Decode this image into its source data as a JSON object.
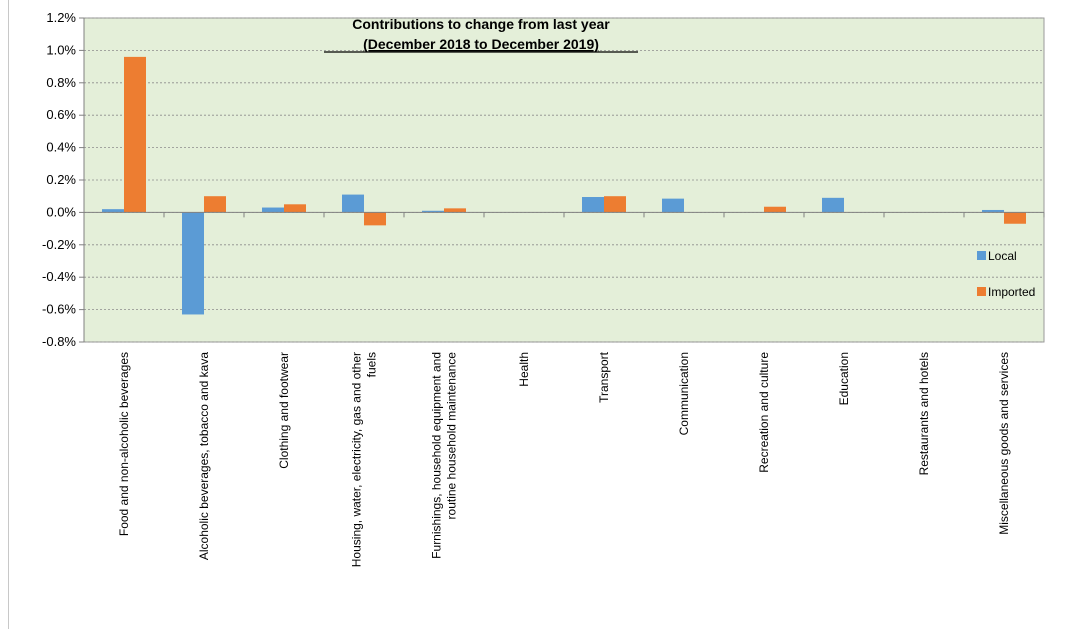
{
  "chart_data": {
    "type": "bar",
    "title": "Contributions to change from last year",
    "subtitle": "(December 2018 to December 2019)",
    "xlabel": "",
    "ylabel": "",
    "ylim": [
      -0.8,
      1.2
    ],
    "yticks": [
      1.2,
      1.0,
      0.8,
      0.6,
      0.4,
      0.2,
      0.0,
      -0.2,
      -0.4,
      -0.6,
      -0.8
    ],
    "ytick_labels": [
      "1.2%",
      "1.0%",
      "0.8%",
      "0.6%",
      "0.4%",
      "0.2%",
      "0.0%",
      "-0.2%",
      "-0.4%",
      "-0.6%",
      "-0.8%"
    ],
    "grid": true,
    "legend_position": "right",
    "plot_background": "#e4efd9",
    "categories": [
      [
        "Food and non-alcoholic beverages"
      ],
      [
        "Alcoholic beverages, tobacco and kava"
      ],
      [
        "Clothing and footwear"
      ],
      [
        "Housing, water, electricity, gas and other",
        "fuels"
      ],
      [
        "Furnishings, household equipment and",
        "routine household maintenance"
      ],
      [
        "Health"
      ],
      [
        "Transport"
      ],
      [
        "Communication"
      ],
      [
        "Recreation and culture"
      ],
      [
        "Education"
      ],
      [
        "Restaurants and hotels"
      ],
      [
        "Miscellaneous goods and services"
      ]
    ],
    "series": [
      {
        "name": "Local",
        "color": "#5b9bd5",
        "values": [
          0.02,
          -0.63,
          0.03,
          0.11,
          0.01,
          0.0,
          0.095,
          0.085,
          0.0,
          0.09,
          0.0,
          0.015
        ]
      },
      {
        "name": "Imported",
        "color": "#ed7d31",
        "values": [
          0.96,
          0.1,
          0.05,
          -0.08,
          0.025,
          0.0,
          0.1,
          0.0,
          0.035,
          0.0,
          0.0,
          -0.07
        ]
      }
    ]
  }
}
